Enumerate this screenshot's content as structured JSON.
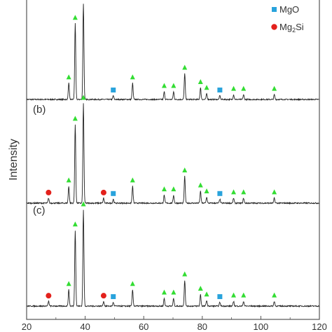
{
  "chart_data": {
    "type": "line",
    "title": "",
    "xlabel": "",
    "ylabel": "Intensity",
    "xlim": [
      20,
      120
    ],
    "x_ticks": [
      20,
      40,
      60,
      80,
      100,
      120
    ],
    "tick_labels": [
      "20",
      "40",
      "60",
      "80",
      "100",
      "120"
    ],
    "grid": false,
    "legend_placement": "top-right",
    "legend": [
      {
        "key": "mgo",
        "label": "MgO",
        "marker": "square",
        "color": "#29a3dc"
      },
      {
        "key": "mg2si",
        "label_main": "Mg",
        "label_sub": "2",
        "label_tail": "Si",
        "marker": "circle",
        "color": "#e3211c"
      }
    ],
    "phase_marker_colors": {
      "mg": "#33dd33",
      "mgo": "#29a3dc",
      "mg2si": "#e3211c"
    },
    "peaks": {
      "mg": [
        [
          34.4,
          0.17
        ],
        [
          36.6,
          0.79
        ],
        [
          39.4,
          1.0
        ],
        [
          56.2,
          0.17
        ],
        [
          67.0,
          0.08
        ],
        [
          70.2,
          0.08
        ],
        [
          74.0,
          0.27
        ],
        [
          79.4,
          0.12
        ],
        [
          81.5,
          0.06
        ],
        [
          90.7,
          0.05
        ],
        [
          94.1,
          0.05
        ],
        [
          104.6,
          0.05
        ]
      ],
      "mgo": [
        [
          49.6,
          0.04
        ],
        [
          86.0,
          0.04
        ]
      ],
      "mg2si": [
        [
          27.5,
          0.05
        ],
        [
          46.3,
          0.05
        ]
      ]
    },
    "series": [
      {
        "panel_label": "",
        "phases": [
          "mg",
          "mgo"
        ]
      },
      {
        "panel_label": "(b)",
        "phases": [
          "mg",
          "mgo",
          "mg2si"
        ]
      },
      {
        "panel_label": "(c)",
        "phases": [
          "mg",
          "mgo",
          "mg2si"
        ]
      }
    ]
  }
}
